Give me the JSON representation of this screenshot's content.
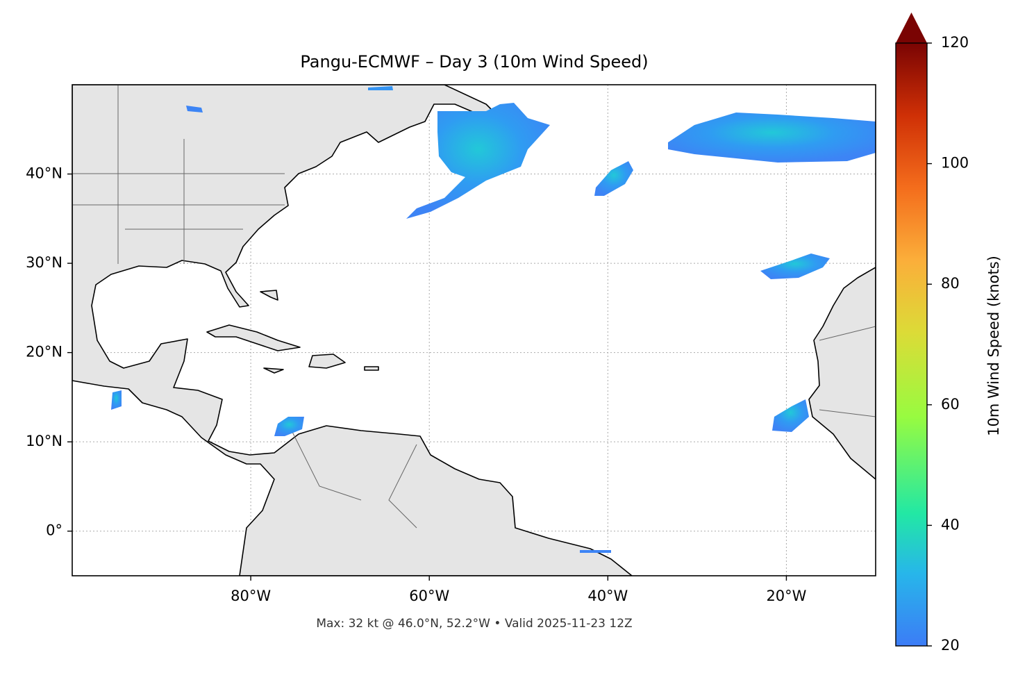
{
  "map": {
    "title": "Pangu-ECMWF – Day 3 (10m Wind Speed)",
    "footnote": "Max: 32 kt @ 46.0°N, 52.2°W • Valid 2025-11-23 12Z",
    "xlim": [
      -100,
      -10
    ],
    "ylim": [
      -5,
      50
    ],
    "xticks": [
      {
        "value": -80,
        "label": "80°W"
      },
      {
        "value": -60,
        "label": "60°W"
      },
      {
        "value": -40,
        "label": "40°W"
      },
      {
        "value": -20,
        "label": "20°W"
      }
    ],
    "yticks": [
      {
        "value": 0,
        "label": "0°"
      },
      {
        "value": 10,
        "label": "10°N"
      },
      {
        "value": 20,
        "label": "20°N"
      },
      {
        "value": 30,
        "label": "30°N"
      },
      {
        "value": 40,
        "label": "40°N"
      }
    ],
    "grid": true,
    "colorbar": {
      "label": "10m Wind Speed (knots)",
      "lim": [
        20,
        120
      ],
      "ticks": [
        20,
        40,
        60,
        80,
        100,
        120
      ],
      "extend": "max"
    }
  }
}
